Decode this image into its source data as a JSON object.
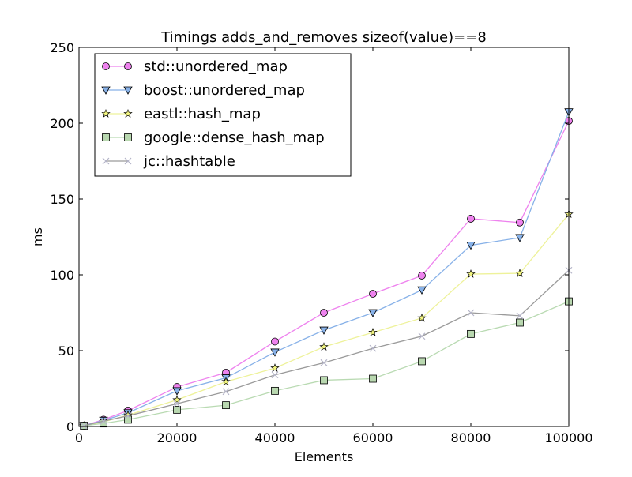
{
  "chart_data": {
    "type": "line",
    "title": "Timings adds_and_removes sizeof(value)==8",
    "xlabel": "Elements",
    "ylabel": "ms",
    "xlim": [
      0,
      100000
    ],
    "ylim": [
      0,
      250
    ],
    "xticks": [
      0,
      20000,
      40000,
      60000,
      80000,
      100000
    ],
    "yticks": [
      0,
      50,
      100,
      150,
      200,
      250
    ],
    "grid": false,
    "legend_position": "top-left",
    "x": [
      1000,
      5000,
      10000,
      20000,
      30000,
      40000,
      50000,
      60000,
      70000,
      80000,
      90000,
      100000
    ],
    "series": [
      {
        "name": "std::unordered_map",
        "marker": "circle",
        "line_color": "#ee82ee",
        "marker_color": "#ee82ee",
        "values": [
          0.5,
          4.5,
          10.5,
          26,
          35.5,
          56,
          75,
          87.5,
          99.5,
          137,
          134.5,
          201.5
        ]
      },
      {
        "name": "boost::unordered_map",
        "marker": "triangle-down",
        "line_color": "#87b1e8",
        "marker_color": "#87b1e8",
        "values": [
          0.5,
          4,
          9,
          23.5,
          32,
          49,
          63.5,
          75,
          90,
          119.5,
          124.5,
          207.5
        ]
      },
      {
        "name": "eastl::hash_map",
        "marker": "star",
        "line_color": "#eef29a",
        "marker_color": "#f4f780",
        "values": [
          0.5,
          3,
          7.5,
          17.5,
          29.5,
          38.5,
          52.5,
          62,
          71.5,
          100.5,
          101,
          140
        ]
      },
      {
        "name": "google::dense_hash_map",
        "marker": "square",
        "line_color": "#b9dab2",
        "marker_color": "#b9d8b0",
        "values": [
          0.5,
          2,
          4.5,
          11,
          14,
          23.5,
          30.5,
          31.5,
          43,
          61,
          68.5,
          82.5
        ]
      },
      {
        "name": "jc::hashtable",
        "marker": "x",
        "line_color": "#9a9a9a",
        "marker_color": "#b4b4c8",
        "values": [
          0.5,
          3.5,
          7,
          15,
          23,
          34,
          42,
          51.5,
          59.5,
          75,
          73,
          103
        ]
      }
    ]
  }
}
